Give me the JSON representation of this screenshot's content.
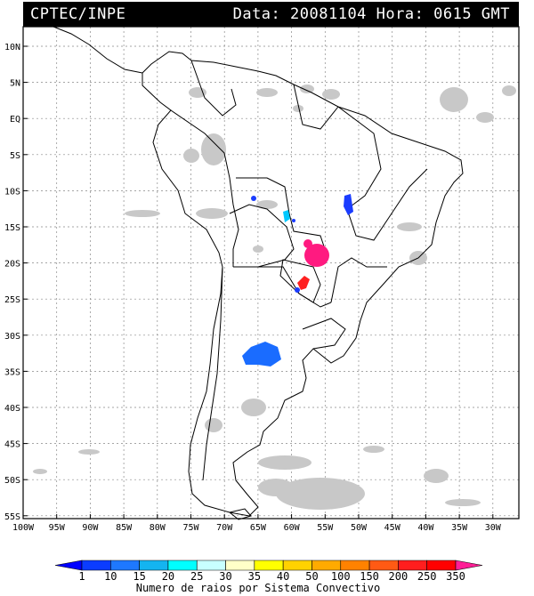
{
  "header": {
    "org": "CPTEC/INPE",
    "date_label": "Data:",
    "date": "20081104",
    "hour_label": "Hora:",
    "hour": "0615 GMT"
  },
  "map": {
    "lat_labels": [
      "10N",
      "5N",
      "EQ",
      "5S",
      "10S",
      "15S",
      "20S",
      "25S",
      "30S",
      "35S",
      "40S",
      "45S",
      "50S",
      "55S"
    ],
    "lon_labels": [
      "100W",
      "95W",
      "90W",
      "85W",
      "80W",
      "75W",
      "70W",
      "65W",
      "60W",
      "55W",
      "50W",
      "45W",
      "40W",
      "35W",
      "30W"
    ],
    "grid": true,
    "cloud_color": "#c8c8c8",
    "convective_systems": [
      {
        "name": "cs-bolivia-north",
        "color": "#1a3cff"
      },
      {
        "name": "cs-mato-grosso",
        "color": "#00c8ff"
      },
      {
        "name": "cs-goias",
        "color": "#1a3cff"
      },
      {
        "name": "cs-mato-grosso-sul",
        "color": "#ff1a80"
      },
      {
        "name": "cs-paraguay",
        "color": "#ff2020"
      },
      {
        "name": "cs-argentina",
        "color": "#1a6cff"
      }
    ]
  },
  "colorbar": {
    "ticks": [
      "1",
      "10",
      "15",
      "20",
      "25",
      "30",
      "35",
      "40",
      "50",
      "100",
      "150",
      "200",
      "250",
      "350"
    ],
    "colors": [
      "#0000ff",
      "#0b3cff",
      "#1e78ff",
      "#14b4f0",
      "#00ffff",
      "#c8ffff",
      "#ffffc8",
      "#ffff00",
      "#ffd200",
      "#ffaa00",
      "#ff8200",
      "#ff5a14",
      "#ff1e1e",
      "#ff0000",
      "#ff1e96"
    ],
    "caption": "Numero de raios por Sistema Convectivo"
  }
}
